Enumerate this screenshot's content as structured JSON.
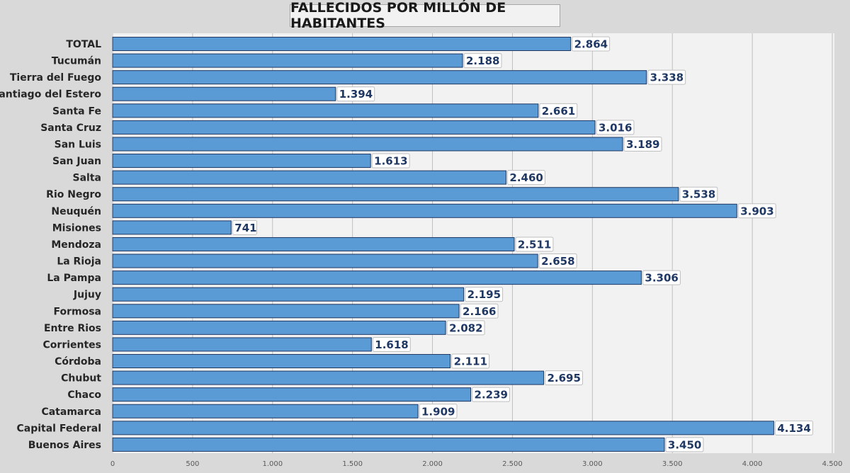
{
  "chart_data": {
    "type": "bar",
    "orientation": "horizontal",
    "title": "FALLECIDOS POR MILLÓN DE HABITANTES",
    "categories": [
      "TOTAL",
      "Tucumán",
      "Tierra del Fuego",
      "Santiago del Estero",
      "Santa Fe",
      "Santa Cruz",
      "San Luis",
      "San Juan",
      "Salta",
      "Rio Negro",
      "Neuquén",
      "Misiones",
      "Mendoza",
      "La Rioja",
      "La Pampa",
      "Jujuy",
      "Formosa",
      "Entre Rios",
      "Corrientes",
      "Córdoba",
      "Chubut",
      "Chaco",
      "Catamarca",
      "Capital Federal",
      "Buenos Aires"
    ],
    "values": [
      2864,
      2188,
      3338,
      1394,
      2661,
      3016,
      3189,
      1613,
      2460,
      3538,
      3903,
      741,
      2511,
      2658,
      3306,
      2195,
      2166,
      2082,
      1618,
      2111,
      2695,
      2239,
      1909,
      4134,
      3450
    ],
    "value_labels": [
      "2.864",
      "2.188",
      "3.338",
      "1.394",
      "2.661",
      "3.016",
      "3.189",
      "1.613",
      "2.460",
      "3.538",
      "3.903",
      "741",
      "2.511",
      "2.658",
      "3.306",
      "2.195",
      "2.166",
      "2.082",
      "1.618",
      "2.111",
      "2.695",
      "2.239",
      "1.909",
      "4.134",
      "3.450"
    ],
    "x_ticks": [
      0,
      500,
      1000,
      1500,
      2000,
      2500,
      3000,
      3500,
      4000,
      4500
    ],
    "x_tick_labels": [
      "0",
      "500",
      "1.000",
      "1.500",
      "2.000",
      "2.500",
      "3.000",
      "3.500",
      "4.000",
      "4.500"
    ],
    "xlim": [
      0,
      4500
    ],
    "xlabel": "",
    "ylabel": "",
    "grid": true,
    "legend": "none",
    "bar_color": "#5b9bd5",
    "bar_edge_color": "#1f3864",
    "label_text_color": "#1f3864",
    "plot_background": "#f2f2f2",
    "page_background": "#d9d9d9"
  }
}
